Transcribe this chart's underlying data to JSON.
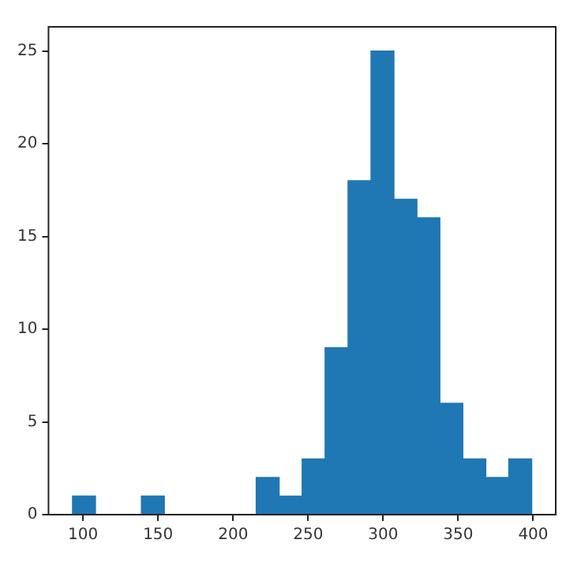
{
  "chart_data": {
    "type": "histogram",
    "bins": [
      93,
      108.3,
      123.6,
      138.9,
      154.2,
      169.5,
      184.8,
      200.1,
      215.4,
      230.7,
      246,
      261.3,
      276.6,
      291.9,
      307.2,
      322.5,
      337.8,
      353.1,
      368.4,
      383.7,
      399
    ],
    "values": [
      1,
      0,
      0,
      1,
      0,
      0,
      0,
      0,
      2,
      1,
      3,
      9,
      18,
      25,
      17,
      16,
      6,
      3,
      2,
      3
    ],
    "color": "#1f77b4",
    "xlim": [
      77,
      415
    ],
    "xticks": [
      100,
      150,
      200,
      250,
      300,
      350,
      400
    ],
    "ylim": [
      0,
      26.3
    ],
    "yticks": [
      0,
      5,
      10,
      15,
      20,
      25
    ],
    "grid": false,
    "legend": false
  }
}
